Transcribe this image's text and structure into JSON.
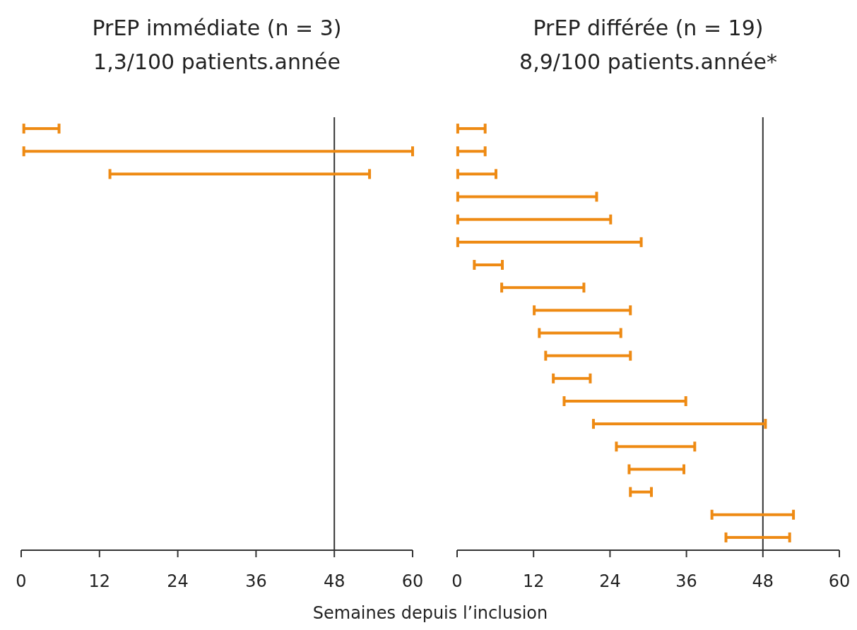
{
  "chart_data": [
    {
      "type": "bar",
      "orientation": "horizontal",
      "title": "PrEP immédiate (n = 3)",
      "subtitle": "1,3/100 patients.année",
      "xlabel": "Semaines depuis l’inclusion",
      "categories": [
        null,
        null,
        null,
        null,
        null,
        null,
        null,
        null,
        null,
        null,
        null,
        null,
        null,
        null,
        null,
        null,
        null,
        null,
        null
      ],
      "base": [
        0.4,
        0.4,
        13.6,
        null,
        null,
        null,
        null,
        null,
        null,
        null,
        null,
        null,
        null,
        null,
        null,
        null,
        null,
        null,
        null
      ],
      "values": [
        5.4,
        59.6,
        39.8,
        null,
        null,
        null,
        null,
        null,
        null,
        null,
        null,
        null,
        null,
        null,
        null,
        null,
        null,
        null,
        null
      ],
      "color": "#ee8a13",
      "xlim": [
        0,
        60
      ],
      "xticks": [
        0,
        12,
        24,
        36,
        48,
        60
      ],
      "ref_lines": [
        {
          "axis": "x",
          "value": 48,
          "color": "#333333"
        }
      ]
    },
    {
      "type": "bar",
      "orientation": "horizontal",
      "title": "PrEP différée (n = 19)",
      "subtitle": "8,9/100 patients.année*",
      "categories": [
        null,
        null,
        null,
        null,
        null,
        null,
        null,
        null,
        null,
        null,
        null,
        null,
        null,
        null,
        null,
        null,
        null,
        null,
        null
      ],
      "base": [
        0.1,
        0.1,
        0.1,
        0.1,
        0.1,
        0.1,
        2.7,
        7.0,
        12.1,
        12.9,
        13.9,
        15.1,
        16.8,
        21.4,
        25.0,
        27.0,
        27.2,
        40.0,
        42.2
      ],
      "values": [
        4.3,
        4.3,
        6.0,
        21.8,
        24.0,
        28.8,
        4.4,
        12.9,
        15.1,
        12.8,
        13.3,
        5.8,
        19.1,
        27.0,
        12.3,
        8.6,
        3.3,
        12.8,
        10.0
      ],
      "color": "#ee8a13",
      "xlim": [
        0,
        60
      ],
      "xticks": [
        0,
        12,
        24,
        36,
        48,
        60
      ],
      "ref_lines": [
        {
          "axis": "x",
          "value": 48,
          "color": "#333333"
        }
      ]
    }
  ]
}
